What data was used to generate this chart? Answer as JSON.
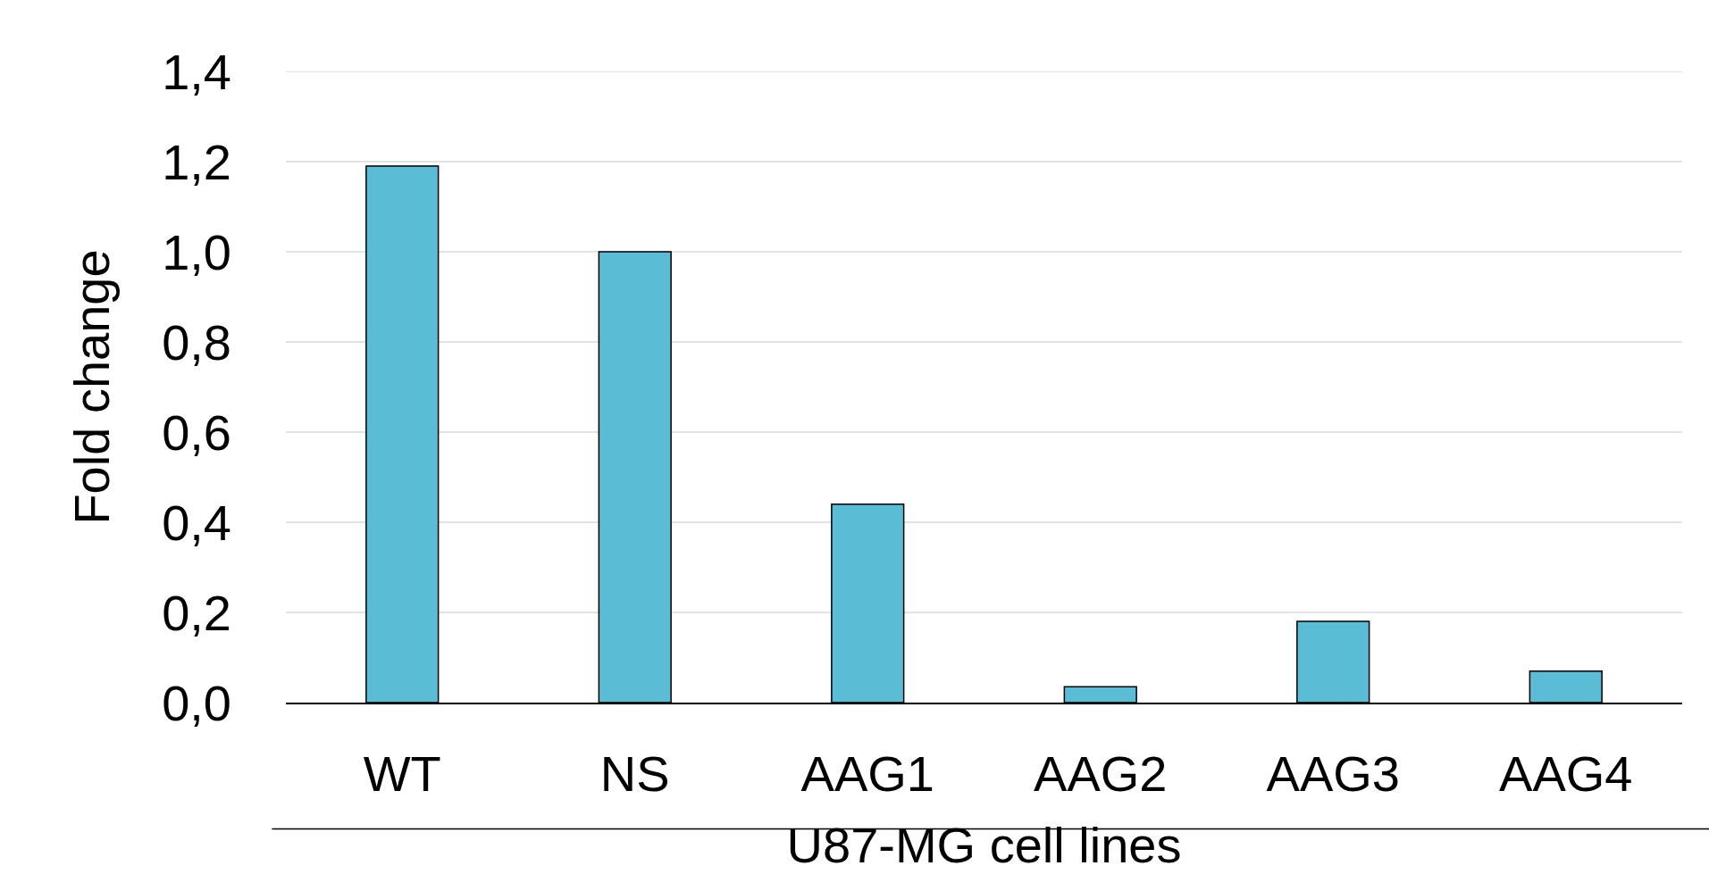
{
  "chart_data": {
    "type": "bar",
    "xlabel": "U87-MG cell lines",
    "ylabel": "Fold change",
    "categories": [
      "WT",
      "NS",
      "AAG1",
      "AAG2",
      "AAG3",
      "AAG4"
    ],
    "values": [
      1.19,
      1.0,
      0.44,
      0.035,
      0.18,
      0.07
    ],
    "color": "#5bbcd6",
    "ylim": [
      0,
      1.4
    ],
    "yticks": [
      {
        "value": 0,
        "label": "0,0"
      },
      {
        "value": 0.2,
        "label": "0,2"
      },
      {
        "value": 0.4,
        "label": "0,4"
      },
      {
        "value": 0.6,
        "label": "0,6"
      },
      {
        "value": 0.8,
        "label": "0,8"
      },
      {
        "value": 1.0,
        "label": "1,0"
      },
      {
        "value": 1.2,
        "label": "1,2"
      },
      {
        "value": 1.4,
        "label": "1,4"
      }
    ],
    "grid": "y"
  }
}
